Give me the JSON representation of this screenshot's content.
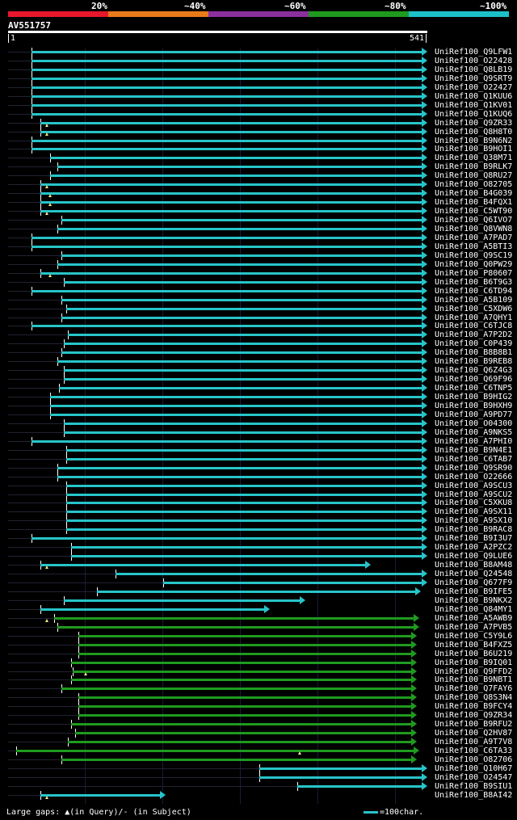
{
  "scale": {
    "labels": [
      "20%",
      "~40%",
      "~60%",
      "~80%",
      "~100%"
    ],
    "colors": [
      "#e8172b",
      "#e87a1a",
      "#8b2f9e",
      "#1f9a1f",
      "#1cc0c8"
    ]
  },
  "query": {
    "id": "AV551757",
    "start": "1",
    "end": "541"
  },
  "hits": [
    {
      "label": "UniRef100_Q9LFW1",
      "s": 0.055,
      "e": 1.0,
      "c": "cyan"
    },
    {
      "label": "UniRef100_O22428",
      "s": 0.055,
      "e": 1.0,
      "c": "cyan"
    },
    {
      "label": "UniRef100_Q8LB19",
      "s": 0.055,
      "e": 1.0,
      "c": "cyan"
    },
    {
      "label": "UniRef100_Q9SRT9",
      "s": 0.055,
      "e": 1.0,
      "c": "cyan"
    },
    {
      "label": "UniRef100_O22427",
      "s": 0.055,
      "e": 1.0,
      "c": "cyan"
    },
    {
      "label": "UniRef100_Q1KUU6",
      "s": 0.055,
      "e": 1.0,
      "c": "cyan"
    },
    {
      "label": "UniRef100_Q1KV01",
      "s": 0.055,
      "e": 1.0,
      "c": "cyan"
    },
    {
      "label": "UniRef100_Q1KUQ6",
      "s": 0.055,
      "e": 1.0,
      "c": "cyan"
    },
    {
      "label": "UniRef100_Q9ZR33",
      "s": 0.078,
      "e": 1.0,
      "c": "cyan",
      "m": 0.093
    },
    {
      "label": "UniRef100_Q8H8T0",
      "s": 0.078,
      "e": 1.0,
      "c": "cyan",
      "m": 0.093
    },
    {
      "label": "UniRef100_B9N6N2",
      "s": 0.055,
      "e": 1.0,
      "c": "cyan"
    },
    {
      "label": "UniRef100_B9HOI1",
      "s": 0.055,
      "e": 1.0,
      "c": "cyan"
    },
    {
      "label": "UniRef100_Q38M71",
      "s": 0.1,
      "e": 1.0,
      "c": "cyan"
    },
    {
      "label": "UniRef100_B9RLK7",
      "s": 0.118,
      "e": 1.0,
      "c": "cyan"
    },
    {
      "label": "UniRef100_Q8RU27",
      "s": 0.1,
      "e": 1.0,
      "c": "cyan"
    },
    {
      "label": "UniRef100_O82705",
      "s": 0.078,
      "e": 1.0,
      "c": "cyan",
      "m": 0.093
    },
    {
      "label": "UniRef100_B4G039",
      "s": 0.078,
      "e": 1.0,
      "c": "cyan",
      "m": 0.1
    },
    {
      "label": "UniRef100_B4FQX1",
      "s": 0.078,
      "e": 1.0,
      "c": "cyan",
      "m": 0.1
    },
    {
      "label": "UniRef100_C5WT90",
      "s": 0.078,
      "e": 1.0,
      "c": "cyan",
      "m": 0.093
    },
    {
      "label": "UniRef100_Q6IVO7",
      "s": 0.128,
      "e": 1.0,
      "c": "cyan"
    },
    {
      "label": "UniRef100_Q8VWN8",
      "s": 0.118,
      "e": 1.0,
      "c": "cyan"
    },
    {
      "label": "UniRef100_A7PAD7",
      "s": 0.055,
      "e": 1.0,
      "c": "cyan"
    },
    {
      "label": "UniRef100_A5BTI3",
      "s": 0.055,
      "e": 1.0,
      "c": "cyan"
    },
    {
      "label": "UniRef100_Q9SC19",
      "s": 0.128,
      "e": 1.0,
      "c": "cyan"
    },
    {
      "label": "UniRef100_Q0PW29",
      "s": 0.118,
      "e": 1.0,
      "c": "cyan"
    },
    {
      "label": "UniRef100_P80607",
      "s": 0.078,
      "e": 1.0,
      "c": "cyan",
      "m": 0.1
    },
    {
      "label": "UniRef100_B6T9G3",
      "s": 0.133,
      "e": 1.0,
      "c": "cyan"
    },
    {
      "label": "UniRef100_C6TD94",
      "s": 0.055,
      "e": 1.0,
      "c": "cyan"
    },
    {
      "label": "UniRef100_A5B109",
      "s": 0.128,
      "e": 1.0,
      "c": "cyan"
    },
    {
      "label": "UniRef100_C5XDW6",
      "s": 0.138,
      "e": 1.0,
      "c": "cyan"
    },
    {
      "label": "UniRef100_A7QHY1",
      "s": 0.128,
      "e": 1.0,
      "c": "cyan"
    },
    {
      "label": "UniRef100_C6TJC8",
      "s": 0.055,
      "e": 1.0,
      "c": "cyan"
    },
    {
      "label": "UniRef100_A7P2D2",
      "s": 0.143,
      "e": 1.0,
      "c": "cyan"
    },
    {
      "label": "UniRef100_C0P439",
      "s": 0.133,
      "e": 1.0,
      "c": "cyan"
    },
    {
      "label": "UniRef100_B8B8B1",
      "s": 0.128,
      "e": 1.0,
      "c": "cyan"
    },
    {
      "label": "UniRef100_B9REB8",
      "s": 0.118,
      "e": 1.0,
      "c": "cyan"
    },
    {
      "label": "UniRef100_Q6Z4G3",
      "s": 0.133,
      "e": 1.0,
      "c": "cyan"
    },
    {
      "label": "UniRef100_Q69F96",
      "s": 0.133,
      "e": 1.0,
      "c": "cyan"
    },
    {
      "label": "UniRef100_C6TNP5",
      "s": 0.122,
      "e": 1.0,
      "c": "cyan"
    },
    {
      "label": "UniRef100_B9HIG2",
      "s": 0.1,
      "e": 1.0,
      "c": "cyan"
    },
    {
      "label": "UniRef100_B9HXH9",
      "s": 0.1,
      "e": 1.0,
      "c": "cyan"
    },
    {
      "label": "UniRef100_A9PD77",
      "s": 0.1,
      "e": 1.0,
      "c": "cyan"
    },
    {
      "label": "UniRef100_O04300",
      "s": 0.133,
      "e": 1.0,
      "c": "cyan"
    },
    {
      "label": "UniRef100_A9NKS5",
      "s": 0.133,
      "e": 1.0,
      "c": "cyan"
    },
    {
      "label": "UniRef100_A7PHI0",
      "s": 0.055,
      "e": 1.0,
      "c": "cyan"
    },
    {
      "label": "UniRef100_B9N4E1",
      "s": 0.138,
      "e": 1.0,
      "c": "cyan"
    },
    {
      "label": "UniRef100_C6TAB7",
      "s": 0.138,
      "e": 1.0,
      "c": "cyan"
    },
    {
      "label": "UniRef100_Q9SR90",
      "s": 0.118,
      "e": 1.0,
      "c": "cyan"
    },
    {
      "label": "UniRef100_O22666",
      "s": 0.118,
      "e": 1.0,
      "c": "cyan"
    },
    {
      "label": "UniRef100_A9SCU3",
      "s": 0.138,
      "e": 1.0,
      "c": "cyan"
    },
    {
      "label": "UniRef100_A9SCU2",
      "s": 0.138,
      "e": 1.0,
      "c": "cyan"
    },
    {
      "label": "UniRef100_C5XKU8",
      "s": 0.138,
      "e": 1.0,
      "c": "cyan"
    },
    {
      "label": "UniRef100_A9SX11",
      "s": 0.138,
      "e": 1.0,
      "c": "cyan"
    },
    {
      "label": "UniRef100_A9SX10",
      "s": 0.138,
      "e": 1.0,
      "c": "cyan"
    },
    {
      "label": "UniRef100_B9RAC8",
      "s": 0.138,
      "e": 1.0,
      "c": "cyan"
    },
    {
      "label": "UniRef100_B9I3U7",
      "s": 0.055,
      "e": 1.0,
      "c": "cyan"
    },
    {
      "label": "UniRef100_A2PZC2",
      "s": 0.15,
      "e": 1.0,
      "c": "cyan"
    },
    {
      "label": "UniRef100_Q9LUE6",
      "s": 0.15,
      "e": 1.0,
      "c": "cyan"
    },
    {
      "label": "UniRef100_B8AM48",
      "s": 0.078,
      "e": 0.865,
      "c": "cyan",
      "m": 0.093
    },
    {
      "label": "UniRef100_Q24548",
      "s": 0.257,
      "e": 1.0,
      "c": "cyan"
    },
    {
      "label": "UniRef100_Q677F9",
      "s": 0.37,
      "e": 1.0,
      "c": "cyan"
    },
    {
      "label": "UniRef100_B9IFE5",
      "s": 0.212,
      "e": 0.985,
      "c": "cyan"
    },
    {
      "label": "UniRef100_B9NKX2",
      "s": 0.133,
      "e": 0.71,
      "c": "cyan"
    },
    {
      "label": "UniRef100_Q84MY1",
      "s": 0.078,
      "e": 0.625,
      "c": "cyan"
    },
    {
      "label": "UniRef100_A5AWB9",
      "s": 0.11,
      "e": 0.98,
      "c": "green",
      "m": 0.093
    },
    {
      "label": "UniRef100_A7PVB5",
      "s": 0.118,
      "e": 0.98,
      "c": "green"
    },
    {
      "label": "UniRef100_C5Y9L6",
      "s": 0.167,
      "e": 0.975,
      "c": "green"
    },
    {
      "label": "UniRef100_B4FXZ5",
      "s": 0.167,
      "e": 0.975,
      "c": "green"
    },
    {
      "label": "UniRef100_B6U219",
      "s": 0.167,
      "e": 0.975,
      "c": "green"
    },
    {
      "label": "UniRef100_B9IQ01",
      "s": 0.15,
      "e": 0.975,
      "c": "green"
    },
    {
      "label": "UniRef100_Q9FFD2",
      "s": 0.155,
      "e": 0.975,
      "c": "green",
      "m": 0.185
    },
    {
      "label": "UniRef100_B9NBT1",
      "s": 0.15,
      "e": 0.975,
      "c": "green"
    },
    {
      "label": "UniRef100_Q7FAY6",
      "s": 0.128,
      "e": 0.975,
      "c": "green"
    },
    {
      "label": "UniRef100_Q8S3N4",
      "s": 0.167,
      "e": 0.975,
      "c": "green"
    },
    {
      "label": "UniRef100_B9FCY4",
      "s": 0.167,
      "e": 0.975,
      "c": "green"
    },
    {
      "label": "UniRef100_Q9ZR34",
      "s": 0.167,
      "e": 0.975,
      "c": "green"
    },
    {
      "label": "UniRef100_B9RFU2",
      "s": 0.15,
      "e": 0.975,
      "c": "green"
    },
    {
      "label": "UniRef100_Q2HV87",
      "s": 0.16,
      "e": 0.975,
      "c": "green"
    },
    {
      "label": "UniRef100_A9T7V8",
      "s": 0.143,
      "e": 0.975,
      "c": "green"
    },
    {
      "label": "UniRef100_C6TA33",
      "s": 0.02,
      "e": 0.98,
      "c": "green",
      "m": 0.695
    },
    {
      "label": "UniRef100_O82706",
      "s": 0.128,
      "e": 0.975,
      "c": "green"
    },
    {
      "label": "UniRef100_Q10H67",
      "s": 0.6,
      "e": 1.0,
      "c": "cyan"
    },
    {
      "label": "UniRef100_O24547",
      "s": 0.6,
      "e": 1.0,
      "c": "cyan"
    },
    {
      "label": "UniRef100_B9SIU1",
      "s": 0.69,
      "e": 1.0,
      "c": "cyan"
    },
    {
      "label": "UniRef100_B8AI42",
      "s": 0.078,
      "e": 0.375,
      "c": "cyan",
      "m": 0.093
    }
  ],
  "footer": {
    "gaps": "Large gaps: ▲(in Query)/- (in Subject)",
    "legend": "=100char."
  }
}
